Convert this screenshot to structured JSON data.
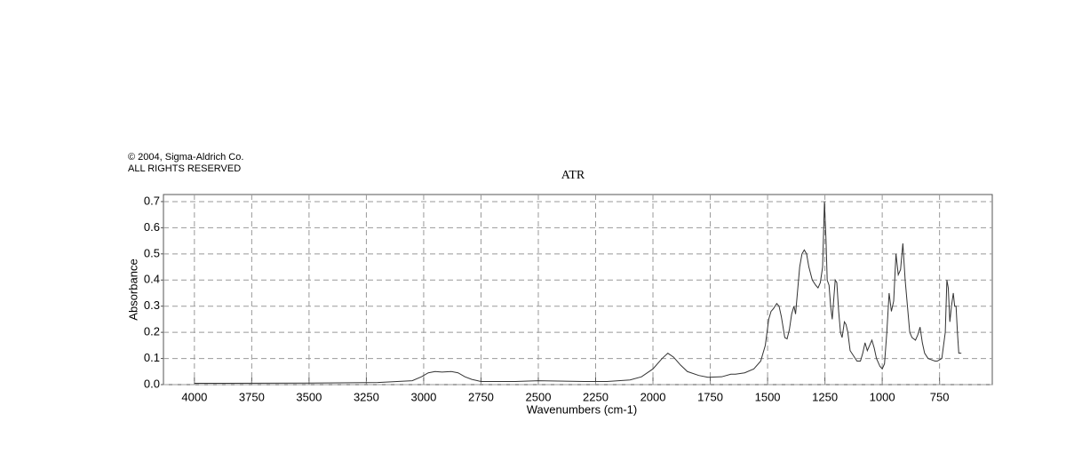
{
  "chart_data": {
    "type": "line",
    "copyright": [
      "© 2004, Sigma-Aldrich Co.",
      "ALL RIGHTS RESERVED"
    ],
    "title": "ATR",
    "x_label": "Wavenumbers (cm-1)",
    "y_label": "Absorbance",
    "xlim": [
      4135,
      520
    ],
    "ylim": [
      0,
      0.727
    ],
    "xticks": [
      4000,
      3750,
      3500,
      3250,
      3000,
      2750,
      2500,
      2250,
      2000,
      1750,
      1500,
      1250,
      1000,
      750
    ],
    "yticks": [
      {
        "value": 0,
        "label": "0.0"
      },
      0.1,
      0.2,
      0.3,
      0.4,
      0.5,
      0.6,
      0.7
    ],
    "grid": true,
    "series": [
      {
        "color": "#333333",
        "x": [
          4000,
          3500,
          3200,
          3050,
          3010,
          2980,
          2950,
          2920,
          2880,
          2850,
          2820,
          2790,
          2750,
          2600,
          2500,
          2300,
          2200,
          2100,
          2050,
          2000,
          1960,
          1935,
          1910,
          1880,
          1850,
          1800,
          1760,
          1700,
          1660,
          1640,
          1600,
          1560,
          1530,
          1510,
          1495,
          1485,
          1475,
          1460,
          1450,
          1440,
          1425,
          1415,
          1405,
          1395,
          1385,
          1378,
          1370,
          1360,
          1350,
          1340,
          1330,
          1320,
          1305,
          1290,
          1280,
          1270,
          1260,
          1252,
          1245,
          1240,
          1232,
          1225,
          1218,
          1212,
          1205,
          1198,
          1190,
          1182,
          1175,
          1165,
          1158,
          1150,
          1140,
          1125,
          1110,
          1095,
          1085,
          1075,
          1065,
          1055,
          1045,
          1035,
          1025,
          1010,
          1000,
          990,
          980,
          970,
          960,
          950,
          940,
          930,
          920,
          910,
          900,
          890,
          880,
          870,
          855,
          845,
          835,
          825,
          815,
          800,
          785,
          770,
          760,
          750,
          740,
          725,
          718,
          712,
          705,
          698,
          690,
          684,
          678,
          672,
          666,
          655
        ],
        "values": [
          0.005,
          0.006,
          0.008,
          0.015,
          0.03,
          0.045,
          0.05,
          0.048,
          0.05,
          0.045,
          0.03,
          0.02,
          0.012,
          0.012,
          0.015,
          0.012,
          0.012,
          0.018,
          0.03,
          0.06,
          0.1,
          0.12,
          0.105,
          0.075,
          0.05,
          0.035,
          0.028,
          0.03,
          0.04,
          0.04,
          0.045,
          0.06,
          0.09,
          0.15,
          0.25,
          0.28,
          0.29,
          0.31,
          0.3,
          0.26,
          0.18,
          0.175,
          0.21,
          0.27,
          0.3,
          0.27,
          0.35,
          0.45,
          0.5,
          0.515,
          0.5,
          0.45,
          0.4,
          0.38,
          0.37,
          0.39,
          0.45,
          0.7,
          0.55,
          0.4,
          0.38,
          0.3,
          0.25,
          0.32,
          0.4,
          0.39,
          0.28,
          0.2,
          0.18,
          0.24,
          0.23,
          0.2,
          0.13,
          0.11,
          0.09,
          0.09,
          0.12,
          0.16,
          0.13,
          0.15,
          0.17,
          0.14,
          0.1,
          0.07,
          0.06,
          0.08,
          0.2,
          0.35,
          0.28,
          0.32,
          0.5,
          0.42,
          0.44,
          0.54,
          0.4,
          0.3,
          0.2,
          0.18,
          0.17,
          0.19,
          0.22,
          0.16,
          0.12,
          0.1,
          0.095,
          0.09,
          0.09,
          0.095,
          0.1,
          0.2,
          0.4,
          0.37,
          0.24,
          0.3,
          0.35,
          0.3,
          0.3,
          0.2,
          0.12,
          0.12
        ]
      }
    ]
  }
}
